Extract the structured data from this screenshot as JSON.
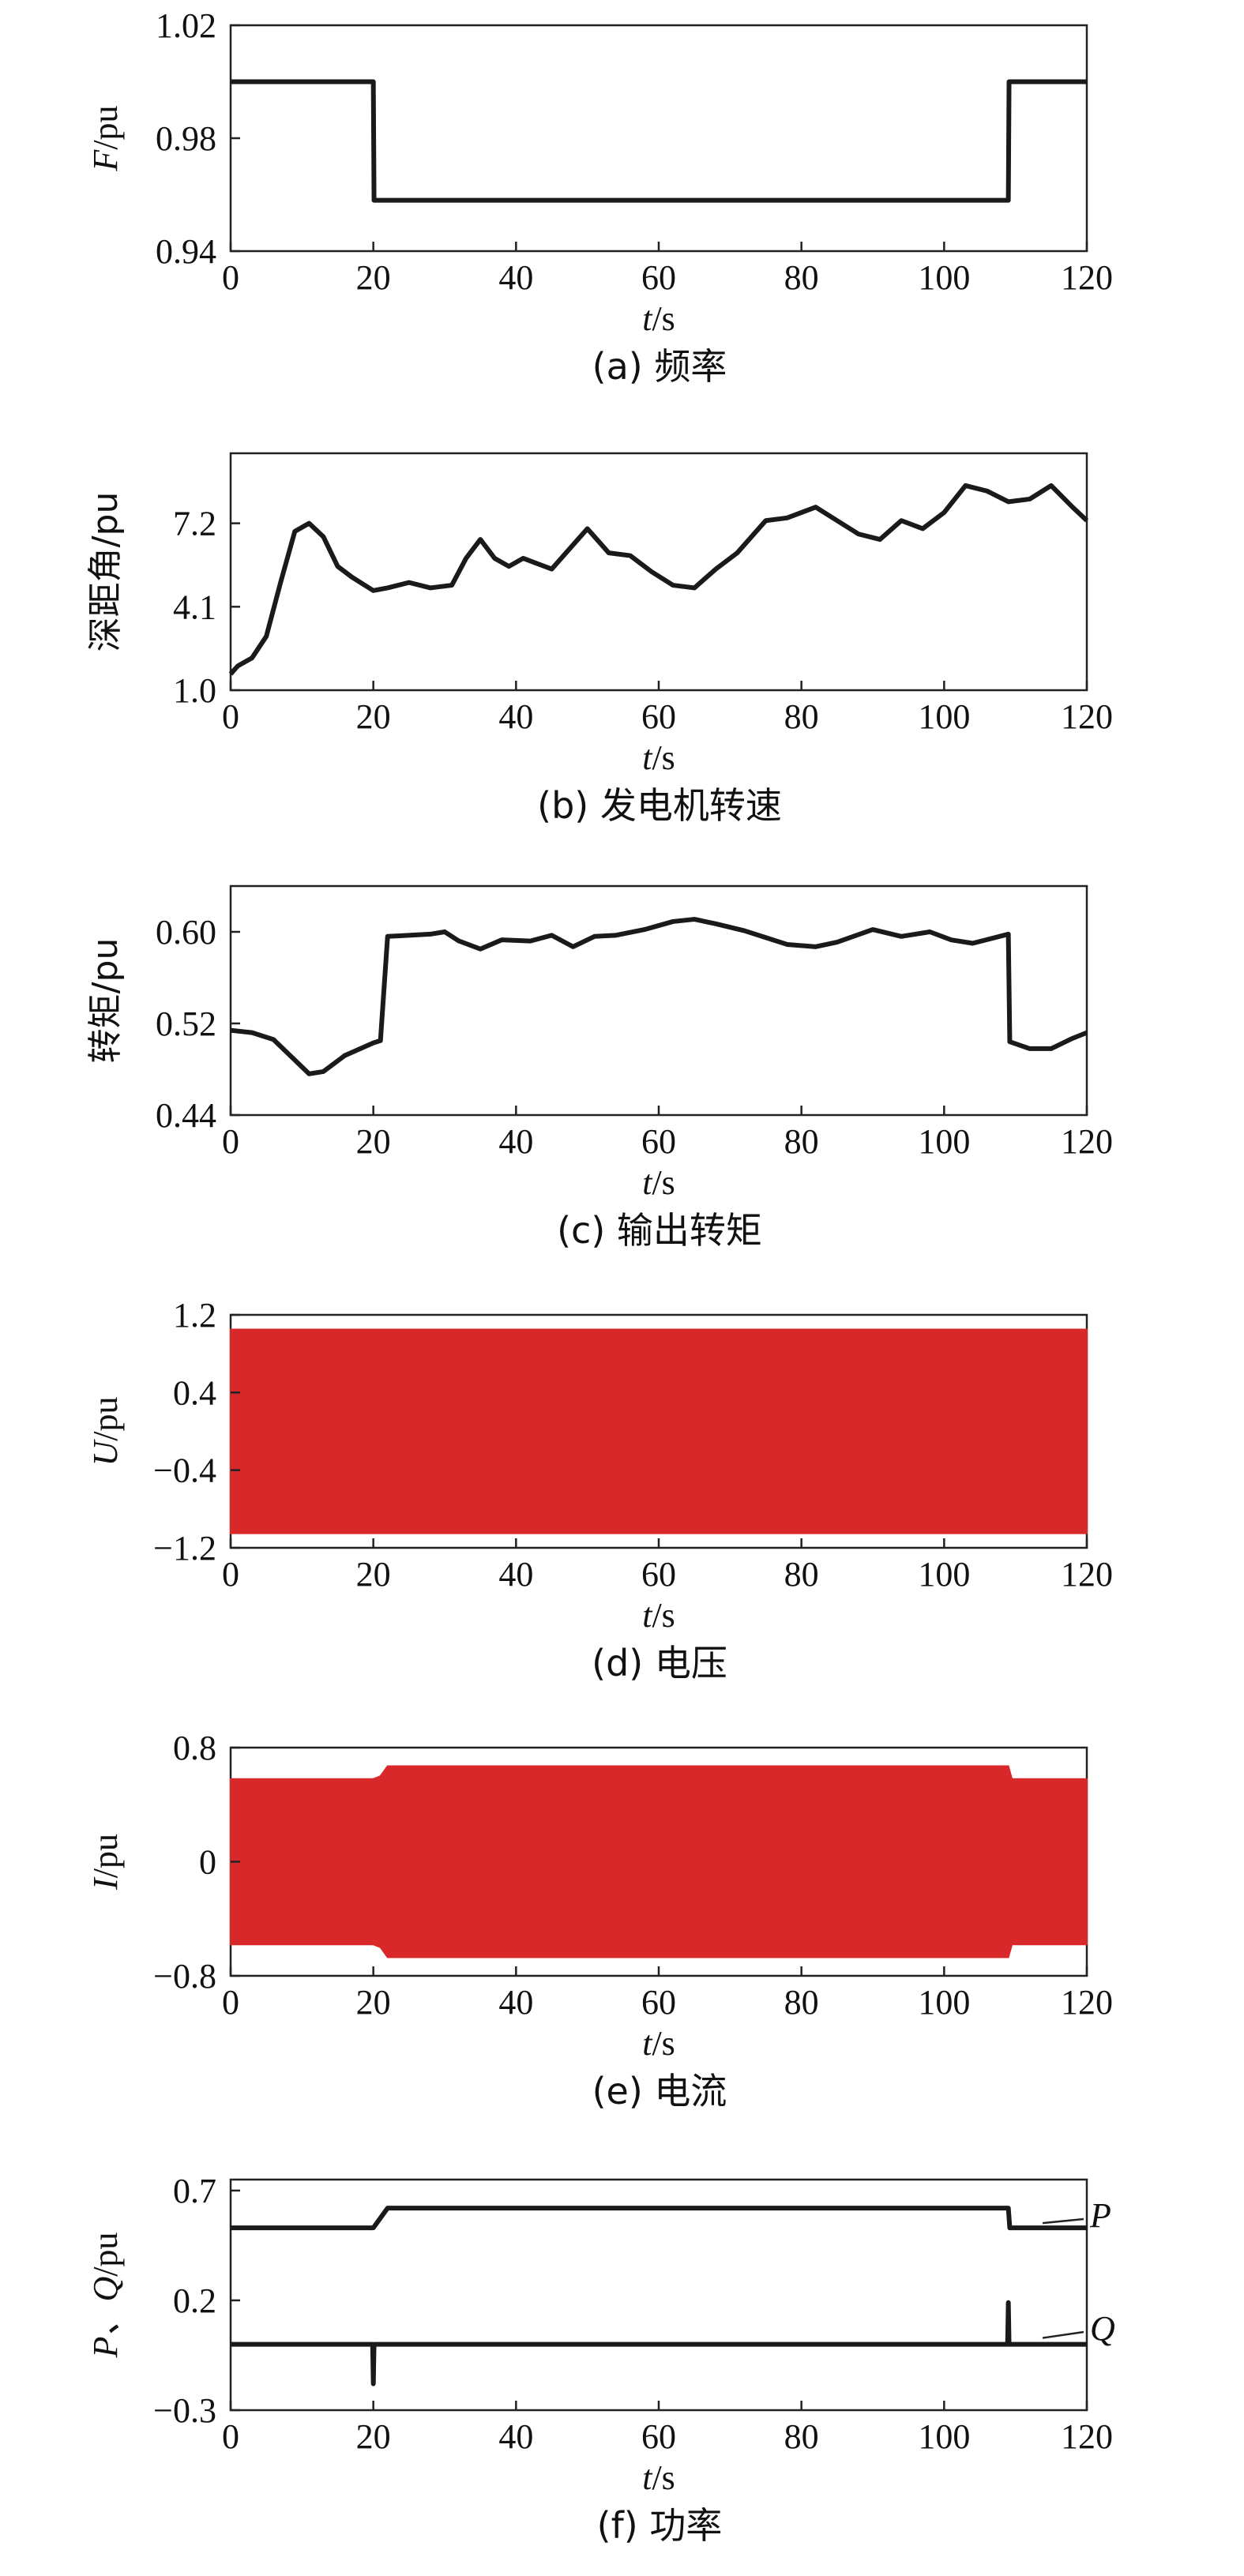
{
  "chart_data": [
    {
      "type": "line",
      "caption": "(a) 频率",
      "ylabel_var": "F",
      "ylabel_unit": "/pu",
      "xlabel_var": "t",
      "xlabel_unit": "/s",
      "xlim": [
        0,
        120
      ],
      "ylim": [
        0.94,
        1.02
      ],
      "xticks": [
        "0",
        "20",
        "40",
        "60",
        "80",
        "100",
        "120"
      ],
      "yticks": [
        {
          "v": 0.94,
          "label": "0.94"
        },
        {
          "v": 0.98,
          "label": "0.98"
        },
        {
          "v": 1.02,
          "label": "1.02"
        }
      ],
      "series": [
        {
          "color": "#1a1a1a",
          "x": [
            0,
            20,
            20.1,
            109,
            109.1,
            120
          ],
          "y": [
            1.0,
            1.0,
            0.958,
            0.958,
            1.0,
            1.0
          ]
        }
      ]
    },
    {
      "type": "line",
      "caption": "(b) 发电机转速",
      "ylabel_var": "",
      "ylabel_unit": "深距角/pu",
      "xlabel_var": "t",
      "xlabel_unit": "/s",
      "xlim": [
        0,
        120
      ],
      "ylim": [
        1.0,
        9.8
      ],
      "xticks": [
        "0",
        "20",
        "40",
        "60",
        "80",
        "100",
        "120"
      ],
      "yticks": [
        {
          "v": 1.0,
          "label": "1.0"
        },
        {
          "v": 4.1,
          "label": "4.1"
        },
        {
          "v": 7.2,
          "label": "7.2"
        }
      ],
      "series": [
        {
          "color": "#1a1a1a",
          "x": [
            0,
            1,
            3,
            5,
            7,
            9,
            11,
            13,
            15,
            17,
            20,
            22,
            25,
            28,
            31,
            33,
            35,
            37,
            39,
            41,
            43,
            45,
            47,
            50,
            53,
            56,
            59,
            62,
            65,
            68,
            71,
            75,
            78,
            82,
            85,
            88,
            91,
            94,
            97,
            100,
            103,
            106,
            109,
            112,
            115,
            118,
            120
          ],
          "y": [
            1.6,
            1.9,
            2.2,
            3.0,
            5.0,
            6.9,
            7.2,
            6.7,
            5.6,
            5.2,
            4.7,
            4.8,
            5.0,
            4.8,
            4.9,
            5.9,
            6.6,
            5.9,
            5.6,
            5.9,
            5.7,
            5.5,
            6.1,
            7.0,
            6.1,
            6.0,
            5.4,
            4.9,
            4.8,
            5.5,
            6.1,
            7.3,
            7.4,
            7.8,
            7.3,
            6.8,
            6.6,
            7.3,
            7.0,
            7.6,
            8.6,
            8.4,
            8.0,
            8.1,
            8.6,
            7.8,
            7.3
          ]
        }
      ]
    },
    {
      "type": "line",
      "caption": "(c) 输出转矩",
      "ylabel_var": "",
      "ylabel_unit": "转矩/pu",
      "xlabel_var": "t",
      "xlabel_unit": "/s",
      "xlim": [
        0,
        120
      ],
      "ylim": [
        0.44,
        0.64
      ],
      "xticks": [
        "0",
        "20",
        "40",
        "60",
        "80",
        "100",
        "120"
      ],
      "yticks": [
        {
          "v": 0.44,
          "label": "0.44"
        },
        {
          "v": 0.52,
          "label": "0.52"
        },
        {
          "v": 0.6,
          "label": "0.60"
        }
      ],
      "series": [
        {
          "color": "#1a1a1a",
          "x": [
            0,
            3,
            6,
            9,
            11,
            13,
            16,
            20,
            21,
            22,
            25,
            28,
            30,
            32,
            35,
            38,
            42,
            45,
            48,
            51,
            54,
            58,
            62,
            65,
            68,
            72,
            75,
            78,
            82,
            85,
            90,
            94,
            98,
            101,
            104,
            109,
            109.2,
            112,
            115,
            118,
            120
          ],
          "y": [
            0.514,
            0.512,
            0.506,
            0.488,
            0.476,
            0.478,
            0.492,
            0.503,
            0.505,
            0.596,
            0.597,
            0.598,
            0.6,
            0.592,
            0.585,
            0.593,
            0.592,
            0.597,
            0.587,
            0.596,
            0.597,
            0.602,
            0.609,
            0.611,
            0.607,
            0.601,
            0.595,
            0.589,
            0.587,
            0.591,
            0.602,
            0.596,
            0.6,
            0.593,
            0.59,
            0.598,
            0.504,
            0.498,
            0.498,
            0.507,
            0.512
          ]
        }
      ]
    },
    {
      "type": "area",
      "caption": "(d) 电压",
      "ylabel_var": "U",
      "ylabel_unit": "/pu",
      "xlabel_var": "t",
      "xlabel_unit": "/s",
      "xlim": [
        0,
        120
      ],
      "ylim": [
        -1.2,
        1.2
      ],
      "xticks": [
        "0",
        "20",
        "40",
        "60",
        "80",
        "100",
        "120"
      ],
      "yticks": [
        {
          "v": -1.2,
          "label": "−1.2"
        },
        {
          "v": -0.4,
          "label": "−0.4"
        },
        {
          "v": 0.4,
          "label": "0.4"
        },
        {
          "v": 1.2,
          "label": "1.2"
        }
      ],
      "series": [
        {
          "color": "#d9282a",
          "x": [
            0,
            120
          ],
          "upper": [
            1.05,
            1.05
          ],
          "lower": [
            -1.05,
            -1.05
          ]
        }
      ]
    },
    {
      "type": "area",
      "caption": "(e) 电流",
      "ylabel_var": "I",
      "ylabel_unit": "/pu",
      "xlabel_var": "t",
      "xlabel_unit": "/s",
      "xlim": [
        0,
        120
      ],
      "ylim": [
        -0.8,
        0.8
      ],
      "xticks": [
        "0",
        "20",
        "40",
        "60",
        "80",
        "100",
        "120"
      ],
      "yticks": [
        {
          "v": -0.8,
          "label": "−0.8"
        },
        {
          "v": 0,
          "label": "0"
        },
        {
          "v": 0.8,
          "label": "0.8"
        }
      ],
      "series": [
        {
          "color": "#d9282a",
          "x": [
            0,
            20,
            21,
            22,
            109,
            109.5,
            120
          ],
          "upper": [
            0.58,
            0.58,
            0.6,
            0.67,
            0.67,
            0.58,
            0.58
          ],
          "lower": [
            -0.58,
            -0.58,
            -0.6,
            -0.67,
            -0.67,
            -0.58,
            -0.58
          ]
        }
      ]
    },
    {
      "type": "line",
      "caption": "(f) 功率",
      "ylabel_var": "P、Q",
      "ylabel_unit": "/pu",
      "xlabel_var": "t",
      "xlabel_unit": "/s",
      "xlim": [
        0,
        120
      ],
      "ylim": [
        -0.3,
        0.75
      ],
      "xticks": [
        "0",
        "20",
        "40",
        "60",
        "80",
        "100",
        "120"
      ],
      "yticks": [
        {
          "v": -0.3,
          "label": "−0.3"
        },
        {
          "v": 0.2,
          "label": "0.2"
        },
        {
          "v": 0.7,
          "label": "0.7"
        }
      ],
      "series": [
        {
          "name": "P",
          "color": "#1a1a1a",
          "x": [
            0,
            20,
            22,
            109,
            109.2,
            120
          ],
          "y": [
            0.53,
            0.53,
            0.62,
            0.62,
            0.53,
            0.53
          ]
        },
        {
          "name": "Q",
          "color": "#1a1a1a",
          "x": [
            0,
            19.9,
            20,
            20.1,
            108.9,
            109,
            109.1,
            120
          ],
          "y": [
            0.0,
            0.0,
            -0.18,
            0.0,
            0.0,
            0.19,
            0.0,
            0.0
          ]
        }
      ]
    }
  ]
}
